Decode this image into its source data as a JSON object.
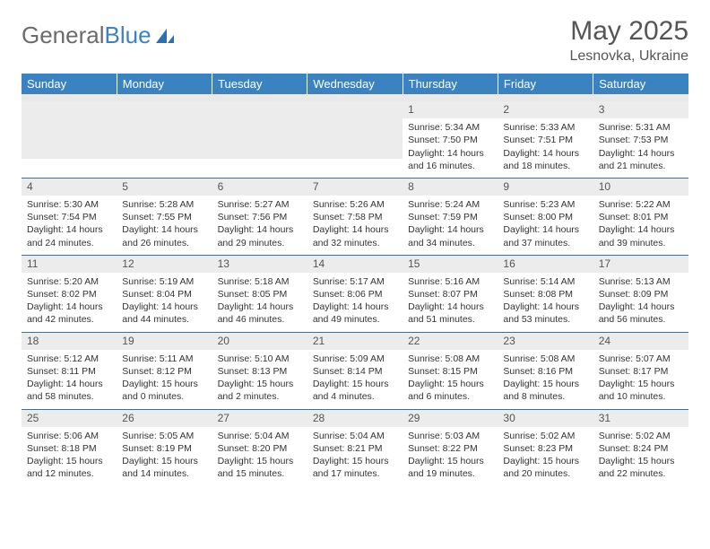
{
  "brand": {
    "first": "General",
    "second": "Blue",
    "logo_color": "#2f6fb0"
  },
  "title": "May 2025",
  "location": "Lesnovka, Ukraine",
  "colors": {
    "header_bg": "#3b83c0",
    "header_text": "#ffffff",
    "row_divider": "#3b6fa0",
    "daynum_bg": "#ececec",
    "body_text": "#333333",
    "title_text": "#555555"
  },
  "day_headers": [
    "Sunday",
    "Monday",
    "Tuesday",
    "Wednesday",
    "Thursday",
    "Friday",
    "Saturday"
  ],
  "weeks": [
    [
      {
        "n": "",
        "sr": "",
        "ss": "",
        "dl": ""
      },
      {
        "n": "",
        "sr": "",
        "ss": "",
        "dl": ""
      },
      {
        "n": "",
        "sr": "",
        "ss": "",
        "dl": ""
      },
      {
        "n": "",
        "sr": "",
        "ss": "",
        "dl": ""
      },
      {
        "n": "1",
        "sr": "Sunrise: 5:34 AM",
        "ss": "Sunset: 7:50 PM",
        "dl": "Daylight: 14 hours and 16 minutes."
      },
      {
        "n": "2",
        "sr": "Sunrise: 5:33 AM",
        "ss": "Sunset: 7:51 PM",
        "dl": "Daylight: 14 hours and 18 minutes."
      },
      {
        "n": "3",
        "sr": "Sunrise: 5:31 AM",
        "ss": "Sunset: 7:53 PM",
        "dl": "Daylight: 14 hours and 21 minutes."
      }
    ],
    [
      {
        "n": "4",
        "sr": "Sunrise: 5:30 AM",
        "ss": "Sunset: 7:54 PM",
        "dl": "Daylight: 14 hours and 24 minutes."
      },
      {
        "n": "5",
        "sr": "Sunrise: 5:28 AM",
        "ss": "Sunset: 7:55 PM",
        "dl": "Daylight: 14 hours and 26 minutes."
      },
      {
        "n": "6",
        "sr": "Sunrise: 5:27 AM",
        "ss": "Sunset: 7:56 PM",
        "dl": "Daylight: 14 hours and 29 minutes."
      },
      {
        "n": "7",
        "sr": "Sunrise: 5:26 AM",
        "ss": "Sunset: 7:58 PM",
        "dl": "Daylight: 14 hours and 32 minutes."
      },
      {
        "n": "8",
        "sr": "Sunrise: 5:24 AM",
        "ss": "Sunset: 7:59 PM",
        "dl": "Daylight: 14 hours and 34 minutes."
      },
      {
        "n": "9",
        "sr": "Sunrise: 5:23 AM",
        "ss": "Sunset: 8:00 PM",
        "dl": "Daylight: 14 hours and 37 minutes."
      },
      {
        "n": "10",
        "sr": "Sunrise: 5:22 AM",
        "ss": "Sunset: 8:01 PM",
        "dl": "Daylight: 14 hours and 39 minutes."
      }
    ],
    [
      {
        "n": "11",
        "sr": "Sunrise: 5:20 AM",
        "ss": "Sunset: 8:02 PM",
        "dl": "Daylight: 14 hours and 42 minutes."
      },
      {
        "n": "12",
        "sr": "Sunrise: 5:19 AM",
        "ss": "Sunset: 8:04 PM",
        "dl": "Daylight: 14 hours and 44 minutes."
      },
      {
        "n": "13",
        "sr": "Sunrise: 5:18 AM",
        "ss": "Sunset: 8:05 PM",
        "dl": "Daylight: 14 hours and 46 minutes."
      },
      {
        "n": "14",
        "sr": "Sunrise: 5:17 AM",
        "ss": "Sunset: 8:06 PM",
        "dl": "Daylight: 14 hours and 49 minutes."
      },
      {
        "n": "15",
        "sr": "Sunrise: 5:16 AM",
        "ss": "Sunset: 8:07 PM",
        "dl": "Daylight: 14 hours and 51 minutes."
      },
      {
        "n": "16",
        "sr": "Sunrise: 5:14 AM",
        "ss": "Sunset: 8:08 PM",
        "dl": "Daylight: 14 hours and 53 minutes."
      },
      {
        "n": "17",
        "sr": "Sunrise: 5:13 AM",
        "ss": "Sunset: 8:09 PM",
        "dl": "Daylight: 14 hours and 56 minutes."
      }
    ],
    [
      {
        "n": "18",
        "sr": "Sunrise: 5:12 AM",
        "ss": "Sunset: 8:11 PM",
        "dl": "Daylight: 14 hours and 58 minutes."
      },
      {
        "n": "19",
        "sr": "Sunrise: 5:11 AM",
        "ss": "Sunset: 8:12 PM",
        "dl": "Daylight: 15 hours and 0 minutes."
      },
      {
        "n": "20",
        "sr": "Sunrise: 5:10 AM",
        "ss": "Sunset: 8:13 PM",
        "dl": "Daylight: 15 hours and 2 minutes."
      },
      {
        "n": "21",
        "sr": "Sunrise: 5:09 AM",
        "ss": "Sunset: 8:14 PM",
        "dl": "Daylight: 15 hours and 4 minutes."
      },
      {
        "n": "22",
        "sr": "Sunrise: 5:08 AM",
        "ss": "Sunset: 8:15 PM",
        "dl": "Daylight: 15 hours and 6 minutes."
      },
      {
        "n": "23",
        "sr": "Sunrise: 5:08 AM",
        "ss": "Sunset: 8:16 PM",
        "dl": "Daylight: 15 hours and 8 minutes."
      },
      {
        "n": "24",
        "sr": "Sunrise: 5:07 AM",
        "ss": "Sunset: 8:17 PM",
        "dl": "Daylight: 15 hours and 10 minutes."
      }
    ],
    [
      {
        "n": "25",
        "sr": "Sunrise: 5:06 AM",
        "ss": "Sunset: 8:18 PM",
        "dl": "Daylight: 15 hours and 12 minutes."
      },
      {
        "n": "26",
        "sr": "Sunrise: 5:05 AM",
        "ss": "Sunset: 8:19 PM",
        "dl": "Daylight: 15 hours and 14 minutes."
      },
      {
        "n": "27",
        "sr": "Sunrise: 5:04 AM",
        "ss": "Sunset: 8:20 PM",
        "dl": "Daylight: 15 hours and 15 minutes."
      },
      {
        "n": "28",
        "sr": "Sunrise: 5:04 AM",
        "ss": "Sunset: 8:21 PM",
        "dl": "Daylight: 15 hours and 17 minutes."
      },
      {
        "n": "29",
        "sr": "Sunrise: 5:03 AM",
        "ss": "Sunset: 8:22 PM",
        "dl": "Daylight: 15 hours and 19 minutes."
      },
      {
        "n": "30",
        "sr": "Sunrise: 5:02 AM",
        "ss": "Sunset: 8:23 PM",
        "dl": "Daylight: 15 hours and 20 minutes."
      },
      {
        "n": "31",
        "sr": "Sunrise: 5:02 AM",
        "ss": "Sunset: 8:24 PM",
        "dl": "Daylight: 15 hours and 22 minutes."
      }
    ]
  ]
}
